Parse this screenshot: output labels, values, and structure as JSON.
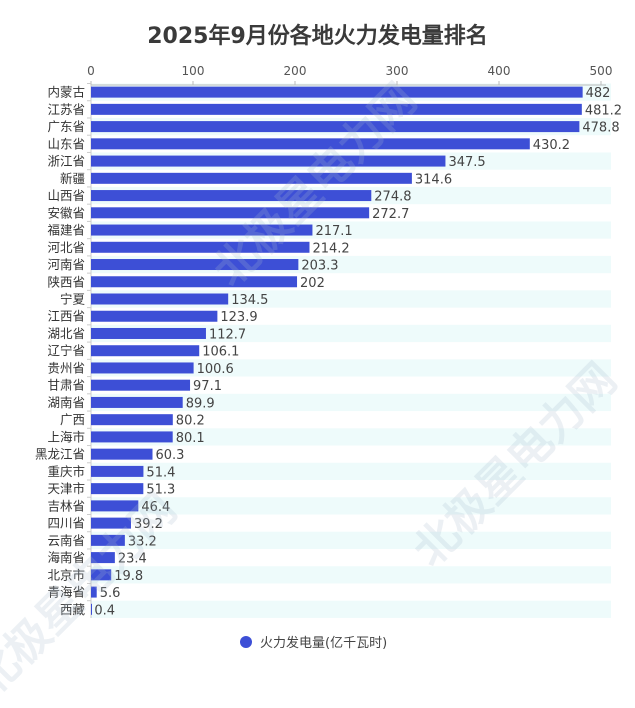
{
  "chart_data": {
    "type": "bar",
    "orientation": "horizontal",
    "title": "2025年9月份各地火力发电量排名",
    "categories": [
      "内蒙古",
      "江苏省",
      "广东省",
      "山东省",
      "浙江省",
      "新疆",
      "山西省",
      "安徽省",
      "福建省",
      "河北省",
      "河南省",
      "陕西省",
      "宁夏",
      "江西省",
      "湖北省",
      "辽宁省",
      "贵州省",
      "甘肃省",
      "湖南省",
      "广西",
      "上海市",
      "黑龙江省",
      "重庆市",
      "天津市",
      "吉林省",
      "四川省",
      "云南省",
      "海南省",
      "北京市",
      "青海省",
      "西藏"
    ],
    "series": [
      {
        "name": "火力发电量(亿千瓦时)",
        "values": [
          482,
          481.2,
          478.8,
          430.2,
          347.5,
          314.6,
          274.8,
          272.7,
          217.1,
          214.2,
          203.3,
          202,
          134.5,
          123.9,
          112.7,
          106.1,
          100.6,
          97.1,
          89.9,
          80.2,
          80.1,
          60.3,
          51.4,
          51.3,
          46.4,
          39.2,
          33.2,
          23.4,
          19.8,
          5.6,
          0.4
        ]
      }
    ],
    "xlim": [
      0,
      500
    ],
    "xticks": [
      "0",
      "100",
      "200",
      "300",
      "400",
      "500"
    ],
    "axis_position": "top",
    "grid": false,
    "legend_position": "bottom",
    "data_labels": true,
    "colors": {
      "bar": "#3d4fd6",
      "row_band": "#eefbfb"
    }
  },
  "watermark": "北极星电力网"
}
